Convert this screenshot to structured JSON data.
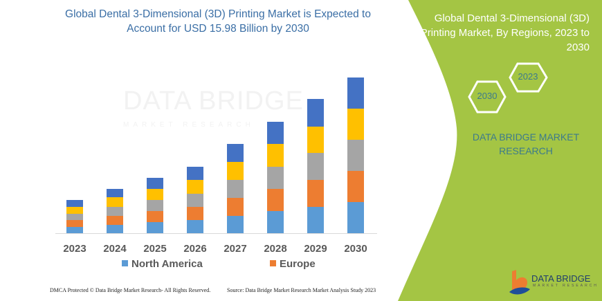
{
  "header": {
    "title": "Global Dental 3-Dimensional (3D) Printing Market is Expected to Account for USD 15.98 Billion by 2030"
  },
  "side_panel": {
    "title": "Global Dental 3-Dimensional (3D) Printing Market, By Regions, 2023 to 2030",
    "hex_start": "2023",
    "hex_end": "2030",
    "brand": "DATA BRIDGE MARKET RESEARCH",
    "bg_color": "#a4c544"
  },
  "watermark": {
    "name": "DATA BRIDGE",
    "sub": "MARKET RESEARCH"
  },
  "logo": {
    "name": "DATA BRIDGE",
    "sub": "MARKET RESEARCH"
  },
  "footer": {
    "left": "DMCA Protected © Data Bridge Market Research-  All Rights Reserved.",
    "right": "Source: Data Bridge Market Research  Market Analysis Study 2023"
  },
  "chart_data": {
    "type": "bar",
    "stacked": true,
    "categories": [
      "2023",
      "2024",
      "2025",
      "2026",
      "2027",
      "2028",
      "2029",
      "2030"
    ],
    "series": [
      {
        "name": "North America",
        "color": "#5b9bd5",
        "values": [
          9,
          12,
          16,
          19,
          25,
          32,
          38,
          45
        ]
      },
      {
        "name": "Europe",
        "color": "#ed7d31",
        "values": [
          10,
          13,
          16,
          19,
          26,
          32,
          39,
          45
        ]
      },
      {
        "color": "#a5a5a5",
        "values": [
          9,
          13,
          16,
          19,
          26,
          32,
          39,
          45
        ]
      },
      {
        "color": "#ffc000",
        "values": [
          10,
          14,
          16,
          20,
          26,
          33,
          38,
          45
        ]
      },
      {
        "color": "#4472c4",
        "values": [
          10,
          12,
          16,
          19,
          26,
          32,
          40,
          45
        ]
      }
    ],
    "legend": [
      "North America",
      "Europe"
    ],
    "legend_placement": "bottom",
    "y_axis_shown": false,
    "grid": false
  }
}
